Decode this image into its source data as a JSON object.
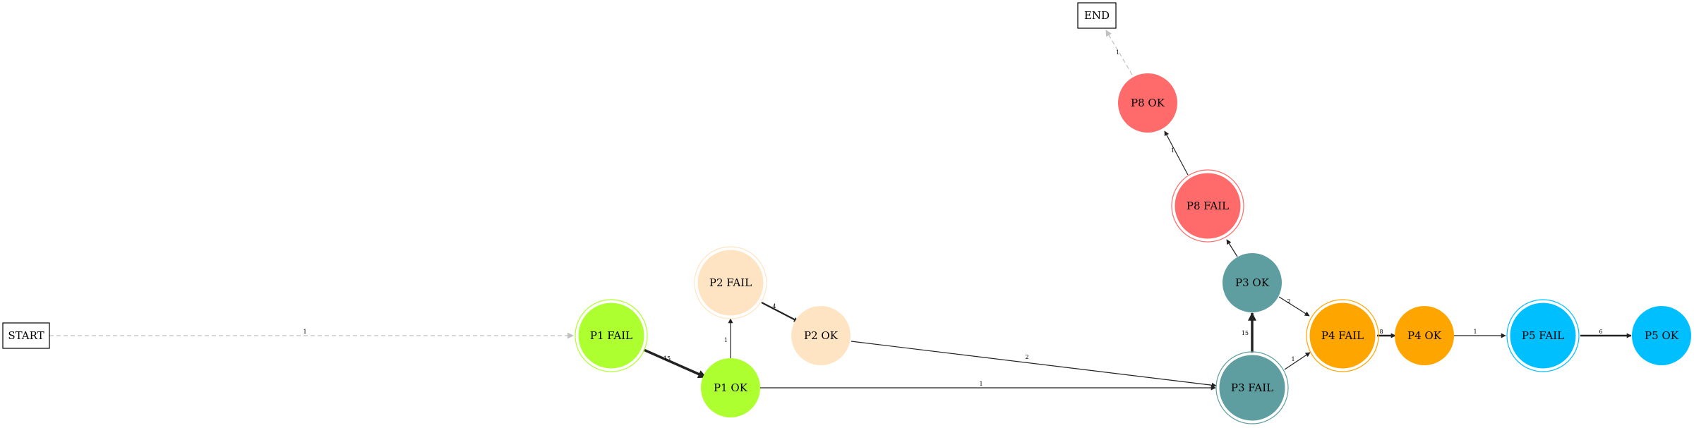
{
  "diagram": {
    "type": "state-transition-graph",
    "nodes": [
      {
        "id": "start",
        "label": "START",
        "shape": "box"
      },
      {
        "id": "end",
        "label": "END",
        "shape": "box"
      },
      {
        "id": "p1fail",
        "label": "P1 FAIL",
        "shape": "doublecircle",
        "color": "#adff2f"
      },
      {
        "id": "p1ok",
        "label": "P1 OK",
        "shape": "circle",
        "color": "#adff2f"
      },
      {
        "id": "p2fail",
        "label": "P2 FAIL",
        "shape": "doublecircle",
        "color": "#ffe4c4"
      },
      {
        "id": "p2ok",
        "label": "P2 OK",
        "shape": "circle",
        "color": "#ffe4c4"
      },
      {
        "id": "p3fail",
        "label": "P3 FAIL",
        "shape": "doublecircle",
        "color": "#5f9ea0"
      },
      {
        "id": "p3ok",
        "label": "P3 OK",
        "shape": "circle",
        "color": "#5f9ea0"
      },
      {
        "id": "p8fail",
        "label": "P8 FAIL",
        "shape": "doublecircle",
        "color": "#ff6a6a"
      },
      {
        "id": "p8ok",
        "label": "P8 OK",
        "shape": "circle",
        "color": "#ff6a6a"
      },
      {
        "id": "p4fail",
        "label": "P4 FAIL",
        "shape": "doublecircle",
        "color": "#ffa500"
      },
      {
        "id": "p4ok",
        "label": "P4 OK",
        "shape": "circle",
        "color": "#ffa500"
      },
      {
        "id": "p5fail",
        "label": "P5 FAIL",
        "shape": "doublecircle",
        "color": "#00bfff"
      },
      {
        "id": "p5ok",
        "label": "P5 OK",
        "shape": "circle",
        "color": "#00bfff"
      }
    ],
    "edges": [
      {
        "id": "start-p1fail",
        "from": "start",
        "to": "p1fail",
        "label": "1",
        "style": "dashed",
        "color": "#c0c0c0"
      },
      {
        "id": "p1fail-p1ok",
        "from": "p1fail",
        "to": "p1ok",
        "label": "15",
        "style": "solid",
        "color": "#222222"
      },
      {
        "id": "p1ok-p2fail",
        "from": "p1ok",
        "to": "p2fail",
        "label": "1",
        "style": "solid",
        "color": "#222222"
      },
      {
        "id": "p2fail-p2ok",
        "from": "p2fail",
        "to": "p2ok",
        "label": "4",
        "style": "solid",
        "color": "#222222"
      },
      {
        "id": "p2ok-p3fail",
        "from": "p2ok",
        "to": "p3fail",
        "label": "2",
        "style": "solid",
        "color": "#222222"
      },
      {
        "id": "p1ok-p3fail",
        "from": "p1ok",
        "to": "p3fail",
        "label": "1",
        "style": "solid",
        "color": "#222222"
      },
      {
        "id": "p3fail-p3ok",
        "from": "p3fail",
        "to": "p3ok",
        "label": "15",
        "style": "solid",
        "color": "#222222"
      },
      {
        "id": "p3ok-p8fail",
        "from": "p3ok",
        "to": "p8fail",
        "label": "",
        "style": "solid",
        "color": "#222222"
      },
      {
        "id": "p8fail-p8ok",
        "from": "p8fail",
        "to": "p8ok",
        "label": "1",
        "style": "solid",
        "color": "#222222"
      },
      {
        "id": "p8ok-end",
        "from": "p8ok",
        "to": "end",
        "label": "1",
        "style": "dashed",
        "color": "#c0c0c0"
      },
      {
        "id": "p3ok-p4fail",
        "from": "p3ok",
        "to": "p4fail",
        "label": "2",
        "style": "solid",
        "color": "#222222"
      },
      {
        "id": "p3fail-p4fail",
        "from": "p3fail",
        "to": "p4fail",
        "label": "1",
        "style": "solid",
        "color": "#222222"
      },
      {
        "id": "p4fail-p4ok",
        "from": "p4fail",
        "to": "p4ok",
        "label": "8",
        "style": "solid",
        "color": "#222222"
      },
      {
        "id": "p4ok-p5fail",
        "from": "p4ok",
        "to": "p5fail",
        "label": "1",
        "style": "solid",
        "color": "#222222"
      },
      {
        "id": "p5fail-p5ok",
        "from": "p5fail",
        "to": "p5ok",
        "label": "6",
        "style": "solid",
        "color": "#222222"
      }
    ]
  }
}
